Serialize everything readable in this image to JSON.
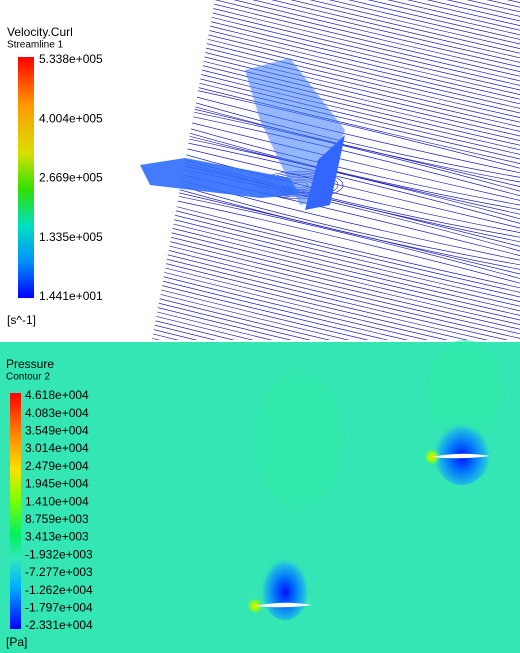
{
  "top_panel": {
    "title": "Velocity.Curl",
    "subtitle": "Streamline 1",
    "legend_labels": [
      "5.338e+005",
      "4.004e+005",
      "2.669e+005",
      "1.335e+005",
      "1.441e+001"
    ],
    "unit": "[s^-1]"
  },
  "bottom_panel": {
    "title": "Pressure",
    "subtitle": "Contour 2",
    "legend_labels": [
      "4.618e+004",
      "4.083e+004",
      "3.549e+004",
      "3.014e+004",
      "2.479e+004",
      "1.945e+004",
      "1.410e+004",
      "8.759e+003",
      "3.413e+003",
      "-1.932e+003",
      "-7.277e+003",
      "-1.262e+004",
      "-1.797e+004",
      "-2.331e+004"
    ],
    "unit": "[Pa]"
  }
}
